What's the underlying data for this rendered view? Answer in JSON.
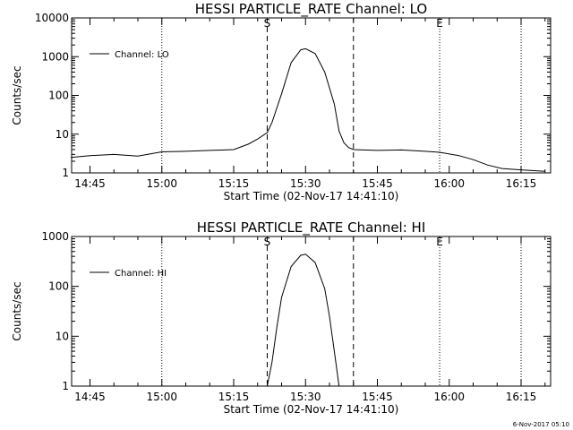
{
  "footer": {
    "timestamp": "6-Nov-2017 05:10"
  },
  "chart_data": [
    {
      "type": "line",
      "title": "HESSI PARTICLE_RATE Channel: LO",
      "xlabel": "Start Time (02-Nov-17 14:41:10)",
      "ylabel": "Counts/sec",
      "yscale": "log",
      "ylim": [
        1,
        10000
      ],
      "yticks": [
        "1",
        "10",
        "100",
        "1000",
        "10000"
      ],
      "xlim": [
        "14:41:10",
        "16:21:10"
      ],
      "xticks": [
        "14:45",
        "15:00",
        "15:15",
        "15:30",
        "15:45",
        "16:00",
        "16:15"
      ],
      "grid": false,
      "legend": {
        "position": "top-left",
        "entries": [
          "Channel: LO"
        ]
      },
      "markers": [
        {
          "time": "15:00",
          "style": "dotted",
          "label": ""
        },
        {
          "time": "15:22",
          "style": "dashed",
          "label": "S"
        },
        {
          "time": "15:40",
          "style": "dashed",
          "label": ""
        },
        {
          "time": "15:58",
          "style": "dotted",
          "label": "E"
        },
        {
          "time": "16:15",
          "style": "dotted",
          "label": ""
        }
      ],
      "series": [
        {
          "name": "Channel: LO",
          "x": [
            "14:41",
            "14:45",
            "14:50",
            "14:55",
            "15:00",
            "15:05",
            "15:10",
            "15:15",
            "15:18",
            "15:20",
            "15:22",
            "15:23",
            "15:25",
            "15:27",
            "15:29",
            "15:30",
            "15:32",
            "15:34",
            "15:36",
            "15:37",
            "15:38",
            "15:39",
            "15:40",
            "15:45",
            "15:50",
            "15:55",
            "15:58",
            "16:02",
            "16:05",
            "16:08",
            "16:11",
            "16:15",
            "16:20"
          ],
          "y": [
            2.5,
            2.8,
            3.0,
            2.7,
            3.5,
            3.6,
            3.8,
            4.0,
            5.5,
            7.5,
            11,
            20,
            110,
            700,
            1500,
            1600,
            1200,
            400,
            60,
            12,
            6,
            4.5,
            4.0,
            3.8,
            3.9,
            3.6,
            3.4,
            2.8,
            2.2,
            1.6,
            1.3,
            1.2,
            1.1
          ]
        }
      ]
    },
    {
      "type": "line",
      "title": "HESSI PARTICLE_RATE Channel: HI",
      "xlabel": "Start Time (02-Nov-17 14:41:10)",
      "ylabel": "Counts/sec",
      "yscale": "log",
      "ylim": [
        1,
        1000
      ],
      "yticks": [
        "1",
        "10",
        "100",
        "1000"
      ],
      "xlim": [
        "14:41:10",
        "16:21:10"
      ],
      "xticks": [
        "14:45",
        "15:00",
        "15:15",
        "15:30",
        "15:45",
        "16:00",
        "16:15"
      ],
      "grid": false,
      "legend": {
        "position": "top-left",
        "entries": [
          "Channel: HI"
        ]
      },
      "markers": [
        {
          "time": "15:00",
          "style": "dotted",
          "label": ""
        },
        {
          "time": "15:22",
          "style": "dashed",
          "label": "S"
        },
        {
          "time": "15:40",
          "style": "dashed",
          "label": ""
        },
        {
          "time": "15:58",
          "style": "dotted",
          "label": "E"
        },
        {
          "time": "16:15",
          "style": "dotted",
          "label": ""
        }
      ],
      "series": [
        {
          "name": "Channel: HI",
          "x": [
            "15:22",
            "15:23",
            "15:24",
            "15:25",
            "15:27",
            "15:29",
            "15:30",
            "15:32",
            "15:34",
            "15:35",
            "15:36",
            "15:37"
          ],
          "y": [
            1,
            3,
            15,
            60,
            250,
            420,
            440,
            300,
            90,
            25,
            5,
            1
          ]
        }
      ]
    }
  ]
}
